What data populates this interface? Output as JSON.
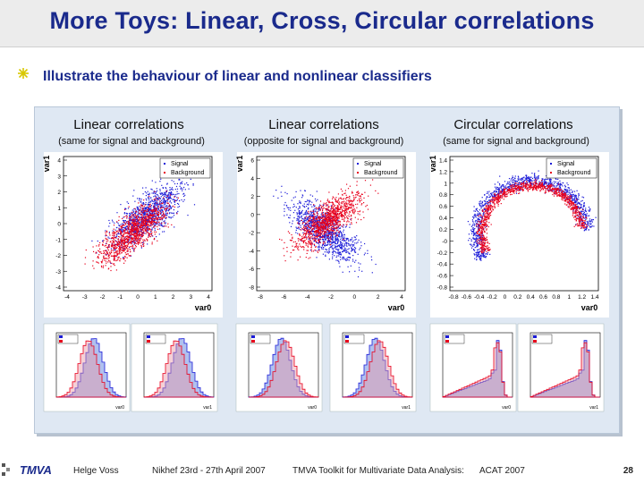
{
  "slide": {
    "title": "More Toys: Linear, Cross, Circular correlations",
    "bullet": "Illustrate the behaviour of linear and nonlinear classifiers"
  },
  "columns": [
    {
      "title": "Linear correlations",
      "subtitle": "(same for signal and background)"
    },
    {
      "title": "Linear correlations",
      "subtitle": "(opposite for signal and background)"
    },
    {
      "title": "Circular correlations",
      "subtitle": "(same for signal and background)"
    }
  ],
  "legend": {
    "signal": "Signal",
    "background": "Background"
  },
  "colors": {
    "signal": "#1c1cd8",
    "background": "#e8001c",
    "title": "#1a2a8c"
  },
  "scatter_plots": [
    {
      "ylabel": "var1",
      "xlabel": "var0",
      "yticks": [
        "4",
        "3",
        "2",
        "1",
        "0",
        "-1",
        "-2",
        "-3",
        "-4"
      ],
      "xticks": [
        "-4",
        "-3",
        "-2",
        "-1",
        "0",
        "1",
        "2",
        "3",
        "4"
      ]
    },
    {
      "ylabel": "var1",
      "xlabel": "var0",
      "yticks": [
        "6",
        "4",
        "2",
        "0",
        "-2",
        "-4",
        "-6",
        "-8"
      ],
      "xticks": [
        "-8",
        "-6",
        "-4",
        "-2",
        "0",
        "2",
        "4"
      ]
    },
    {
      "ylabel": "var1",
      "xlabel": "var0",
      "yticks": [
        "1.4",
        "1.2",
        "1",
        "0.8",
        "0.6",
        "0.4",
        "0.2",
        "-0",
        "-0.2",
        "-0.4",
        "-0.6",
        "-0.8"
      ],
      "xticks": [
        "-0.8",
        "-0.6",
        "-0.4",
        "-0.2",
        "0",
        "0.2",
        "0.4",
        "0.6",
        "0.8",
        "1",
        "1.2",
        "1.4"
      ]
    }
  ],
  "histograms": [
    {
      "xlabel": "var0"
    },
    {
      "xlabel": "var1"
    },
    {
      "xlabel": "var0"
    },
    {
      "xlabel": "var1"
    },
    {
      "xlabel": "var0"
    },
    {
      "xlabel": "var1"
    }
  ],
  "footer": {
    "author": "Helge Voss",
    "venue": "Nikhef 23rd - 27th April 2007",
    "talk": "TMVA Toolkit for Multivariate Data Analysis:",
    "conference": "ACAT 2007",
    "page": "28",
    "logo": "TMVA"
  }
}
